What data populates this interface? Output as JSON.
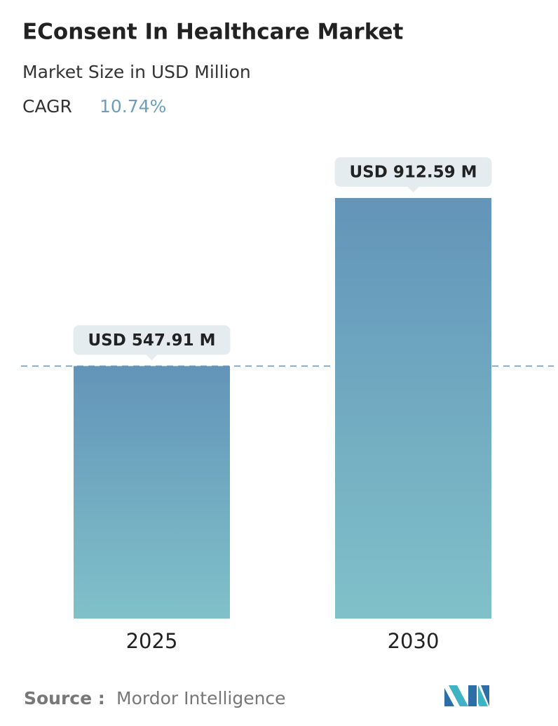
{
  "chart_data": {
    "type": "bar",
    "title": "EConsent In Healthcare Market",
    "subtitle": "Market Size in USD Million",
    "cagr_label": "CAGR",
    "cagr": "10.74%",
    "categories": [
      "2025",
      "2030"
    ],
    "values": [
      547.91,
      912.59
    ],
    "value_labels": [
      "USD 547.91 M",
      "USD 912.59 M"
    ],
    "color_top": "#6394b9",
    "color_bottom": "#80c1c9",
    "source_label": "Source :",
    "source": "Mordor Intelligence"
  }
}
